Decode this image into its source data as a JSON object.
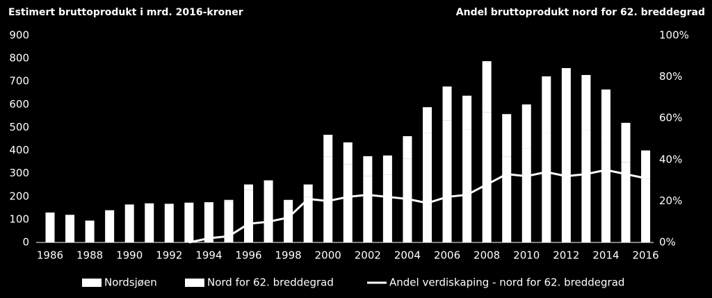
{
  "chart_data": {
    "type": "bar",
    "title": "Estimert bruttoprodukt i mrd. 2016-kroner",
    "y2_title": "Andel bruttoprodukt nord for 62. breddegrad",
    "x": [
      1986,
      1987,
      1988,
      1989,
      1990,
      1991,
      1992,
      1993,
      1994,
      1995,
      1996,
      1997,
      1998,
      1999,
      2000,
      2001,
      2002,
      2003,
      2004,
      2005,
      2006,
      2007,
      2008,
      2009,
      2010,
      2011,
      2012,
      2013,
      2014,
      2015,
      2016
    ],
    "xlim": [
      1985.3,
      2016.4
    ],
    "xticks": [
      1986,
      1988,
      1990,
      1992,
      1994,
      1996,
      1998,
      2000,
      2002,
      2004,
      2006,
      2008,
      2010,
      2012,
      2014,
      2016
    ],
    "ylim": [
      0,
      900
    ],
    "yticks": [
      0,
      100,
      200,
      300,
      400,
      500,
      600,
      700,
      800,
      900
    ],
    "y2lim": [
      0,
      100
    ],
    "y2ticks": [
      {
        "value": 0,
        "label": "0%"
      },
      {
        "value": 20,
        "label": "20%"
      },
      {
        "value": 40,
        "label": "40%"
      },
      {
        "value": 60,
        "label": "60%"
      },
      {
        "value": 80,
        "label": "80%"
      },
      {
        "value": 100,
        "label": "100%"
      }
    ],
    "stacked": true,
    "series": [
      {
        "name": "Nordsjøen",
        "color": "#ffffff",
        "values": [
          130,
          120,
          95,
          140,
          165,
          170,
          168,
          173,
          171,
          179,
          229,
          243,
          163,
          199,
          374,
          339,
          289,
          295,
          365,
          476,
          529,
          491,
          567,
          374,
          408,
          477,
          515,
          488,
          432,
          348,
          276
        ]
      },
      {
        "name": "Nord for 62. breddegrad",
        "color": "#ffffff",
        "values": [
          0,
          0,
          0,
          0,
          0,
          0,
          0,
          0,
          4,
          6,
          23,
          27,
          22,
          53,
          94,
          96,
          86,
          83,
          97,
          112,
          149,
          147,
          221,
          184,
          192,
          245,
          243,
          240,
          233,
          172,
          124
        ]
      },
      {
        "name": "Andel verdiskaping - nord for 62. breddegrad",
        "color": "#ffffff",
        "type": "line",
        "axis": "y2",
        "values": [
          null,
          null,
          null,
          null,
          null,
          null,
          null,
          0,
          2,
          3,
          9,
          10,
          12,
          21,
          20,
          22,
          23,
          22,
          21,
          19,
          22,
          23,
          28,
          33,
          32,
          34,
          32,
          33,
          35,
          33,
          31
        ]
      }
    ]
  }
}
